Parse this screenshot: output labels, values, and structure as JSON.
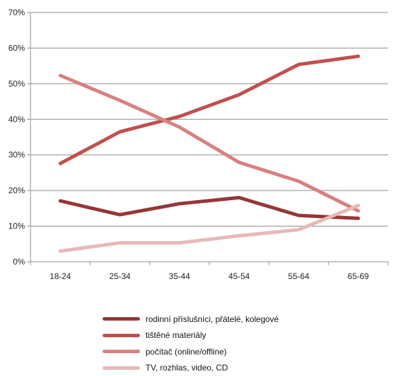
{
  "chart_data": {
    "type": "line",
    "categories": [
      "18-24",
      "25-34",
      "35-44",
      "45-54",
      "55-64",
      "65-69"
    ],
    "ylim": [
      0,
      70
    ],
    "y_ticks": [
      "0%",
      "10%",
      "20%",
      "30%",
      "40%",
      "50%",
      "60%",
      "70%"
    ],
    "grid": "horizontal",
    "legend_position": "bottom",
    "series": [
      {
        "name": "rodinní příslušníci, přátelé, kolegové",
        "color": "#953735",
        "values": [
          17.1,
          13.2,
          16.3,
          18.0,
          13.0,
          12.2
        ]
      },
      {
        "name": "tištěné materiály",
        "color": "#C0504D",
        "values": [
          27.6,
          36.5,
          40.8,
          46.9,
          55.4,
          57.7
        ]
      },
      {
        "name": "počítač (online/offline)",
        "color": "#D9807E",
        "values": [
          52.3,
          45.3,
          37.8,
          27.9,
          22.6,
          14.3
        ]
      },
      {
        "name": "TV, rozhlas, video, CD",
        "color": "#E6B9B8",
        "values": [
          3.0,
          5.3,
          5.3,
          7.3,
          9.0,
          15.8
        ]
      }
    ]
  }
}
